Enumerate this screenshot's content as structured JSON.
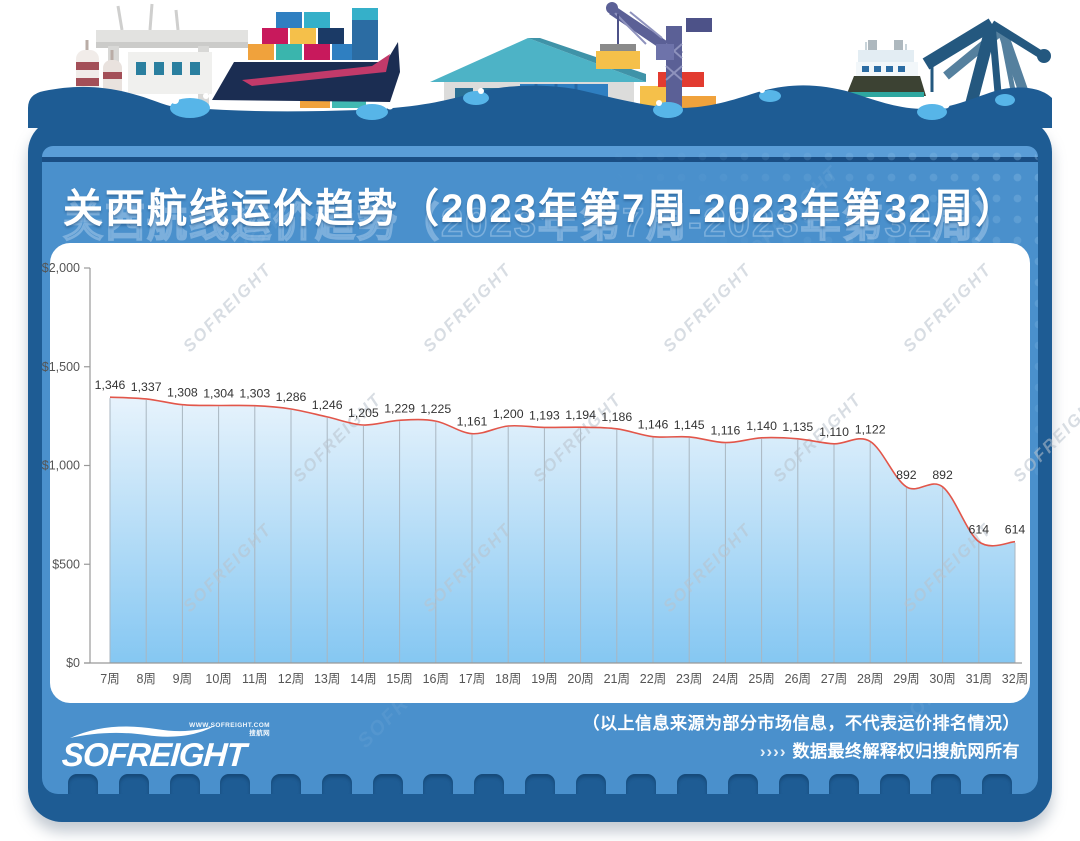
{
  "title": "关西航线运价趋势（2023年第7周-2023年第32周）",
  "watermark_text": "SOFREIGHT",
  "chart_data": {
    "type": "area",
    "title": "关西航线运价趋势（2023年第7周-2023年第32周）",
    "categories": [
      "7周",
      "8周",
      "9周",
      "10周",
      "11周",
      "12周",
      "13周",
      "14周",
      "15周",
      "16周",
      "17周",
      "18周",
      "19周",
      "20周",
      "21周",
      "22周",
      "23周",
      "24周",
      "25周",
      "26周",
      "27周",
      "28周",
      "29周",
      "30周",
      "31周",
      "32周"
    ],
    "values": [
      1346,
      1337,
      1308,
      1304,
      1303,
      1286,
      1246,
      1205,
      1229,
      1225,
      1161,
      1200,
      1193,
      1194,
      1186,
      1146,
      1145,
      1116,
      1140,
      1135,
      1110,
      1122,
      892,
      892,
      614,
      614
    ],
    "series_name": "关西航线运价",
    "xlabel": "",
    "ylabel": "",
    "ylabel_ticks": [
      "$0",
      "$500",
      "$1,000",
      "$1,500",
      "$2,000"
    ],
    "ylim": [
      0,
      2000
    ],
    "grid": "vertical-droplines",
    "legend_position": "none",
    "colors": {
      "line": "#E2564A",
      "area_top": "#F0F7FD",
      "area_bottom": "#85C7F2",
      "axis": "#999999",
      "tick_label": "#555555",
      "data_label": "#333333",
      "dropline": "#A9B6C0"
    }
  },
  "footer": {
    "logo_main": "SOFREIGHT",
    "logo_sub_url": "WWW.SOFREIGHT.COM",
    "logo_sub_cn": "搜航网",
    "note_line1": "（以上信息来源为部分市场信息，不代表运价排名情况）",
    "note_chevrons": "››››",
    "note_line2": "数据最终解释权归搜航网所有"
  },
  "theme_colors": {
    "card_dark_blue": "#1E5C94",
    "panel_blue": "#4A90CC",
    "splash_blue": "#57B5E8",
    "title_white": "#FFFFFF"
  }
}
